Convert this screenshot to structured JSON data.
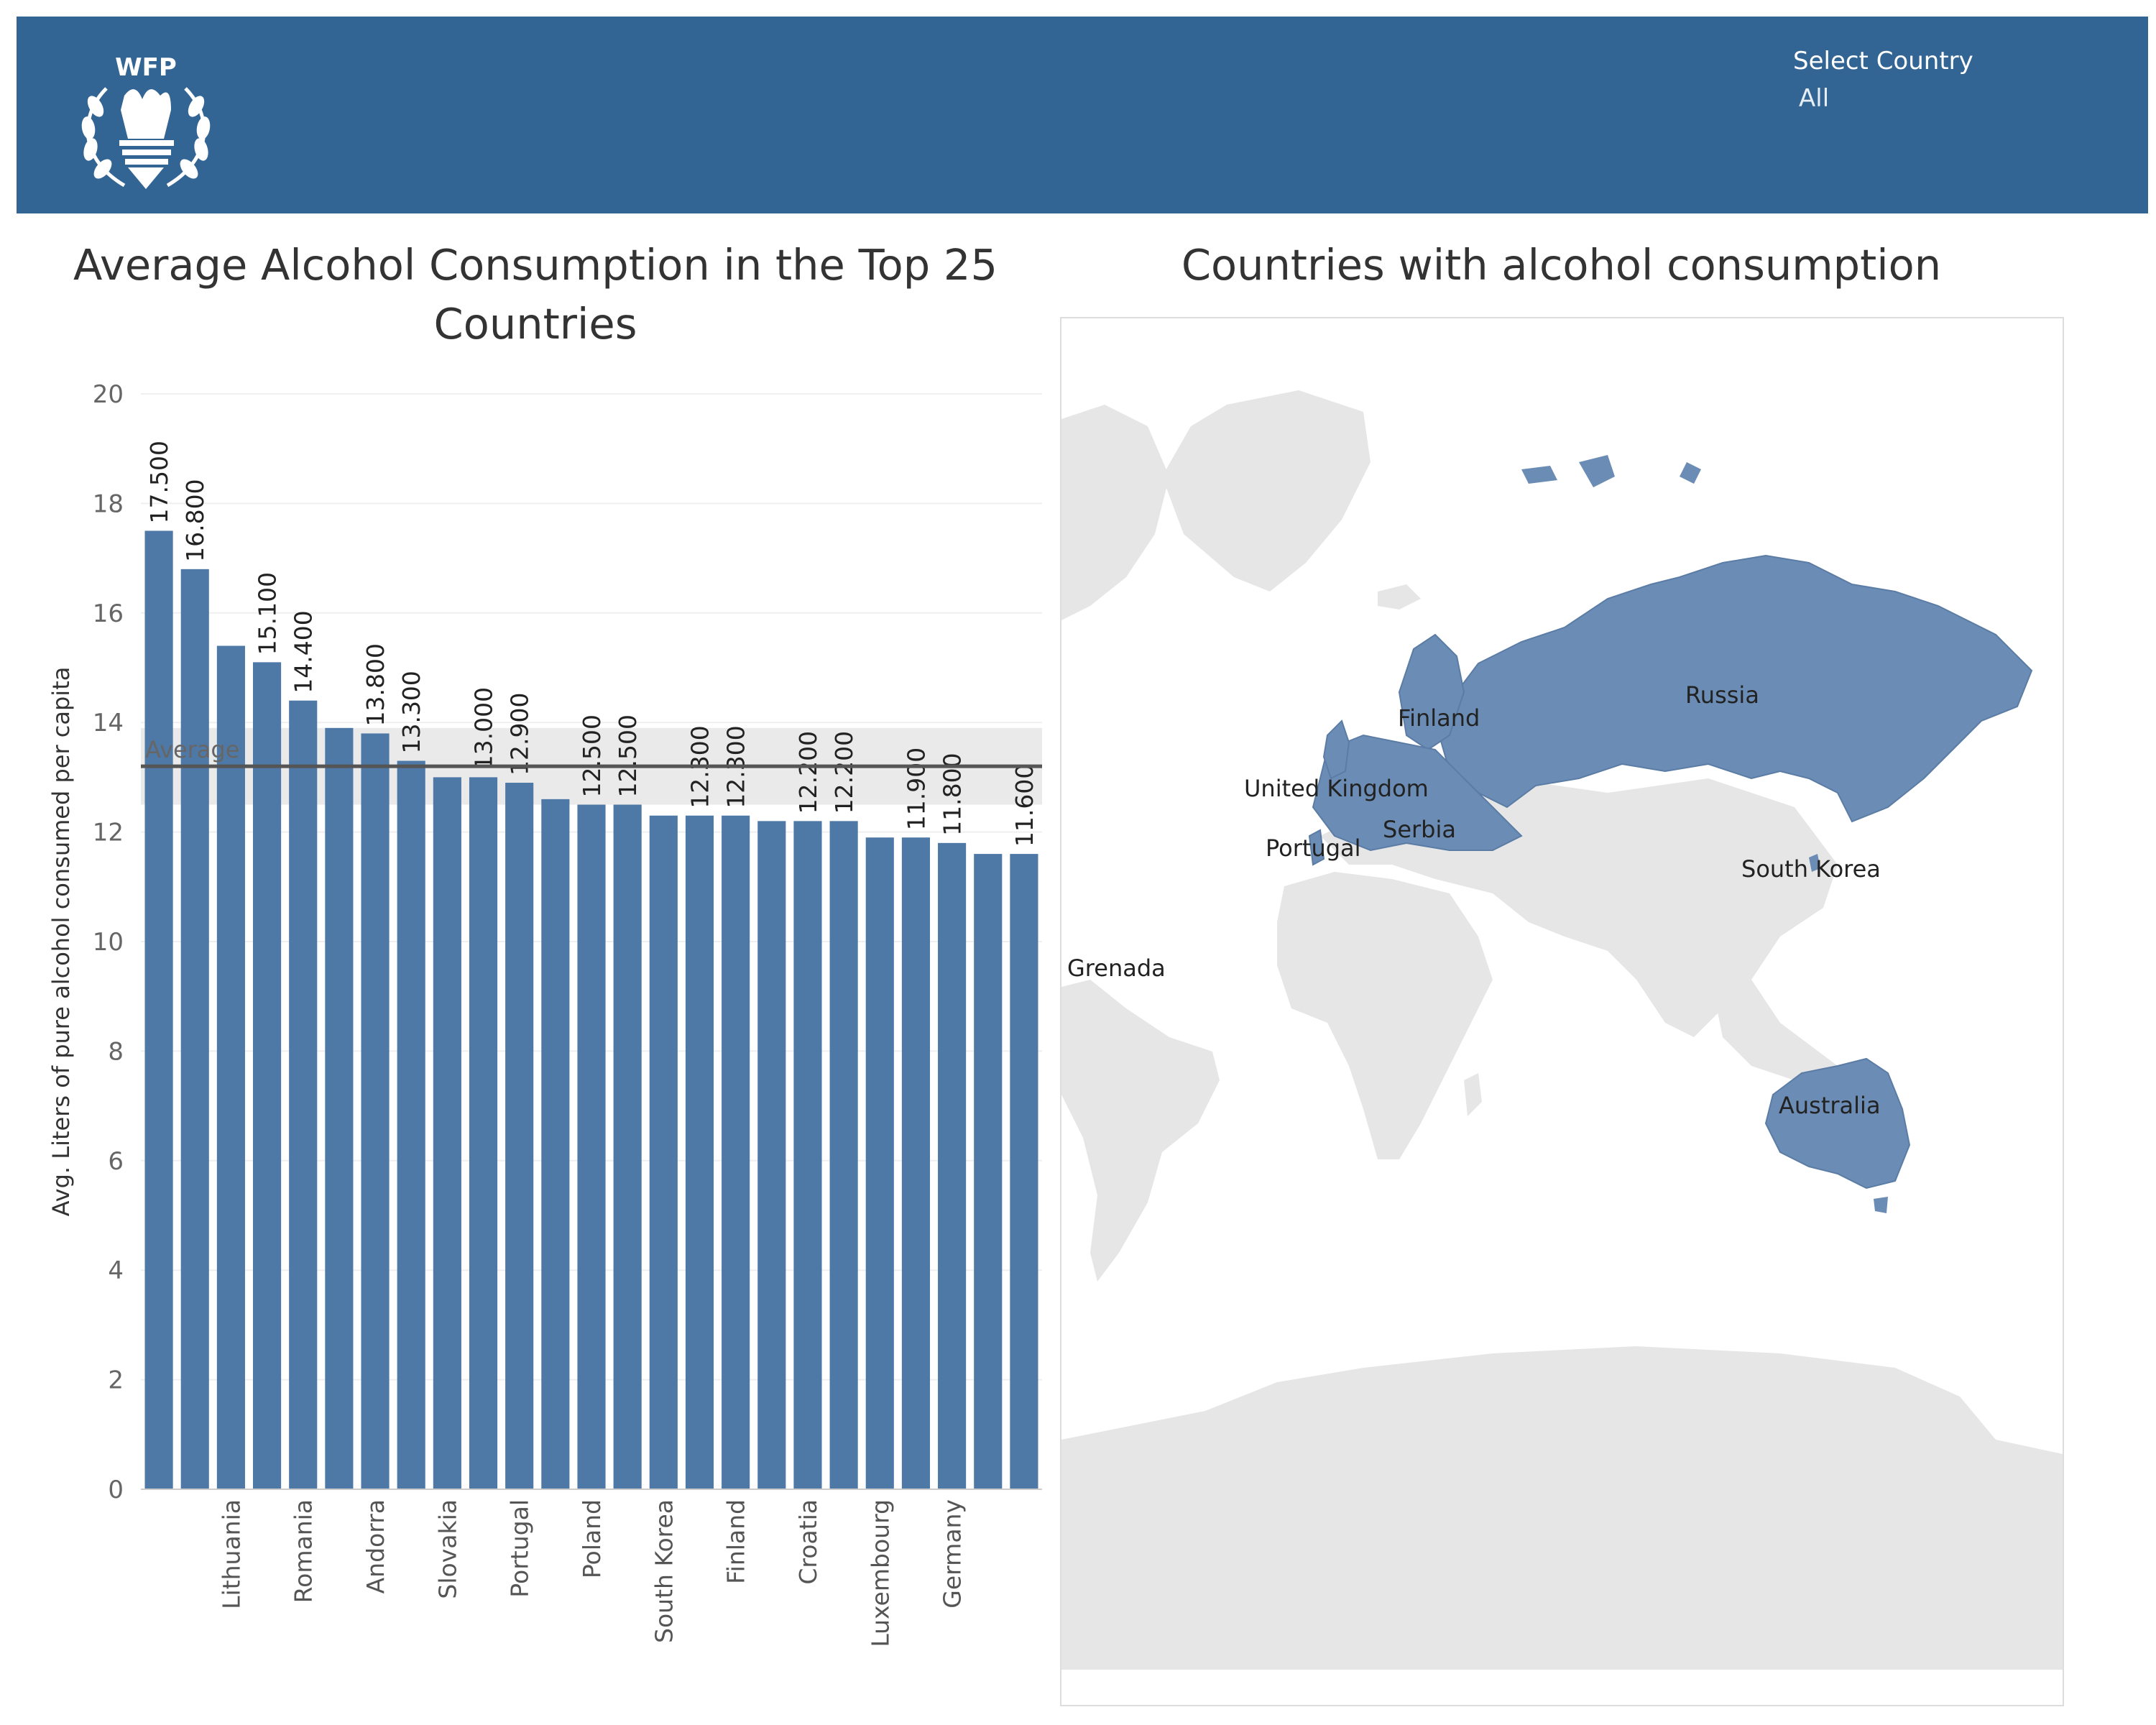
{
  "header": {
    "logo_text": "WFP",
    "filter_label": "Select Country",
    "filter_value": "All"
  },
  "colors": {
    "header_bg": "#336594",
    "bar": "#4e79a7",
    "land": "#e6e6e6",
    "highlight": "#6b8db5"
  },
  "chart_data": {
    "type": "bar",
    "title": "Average Alcohol Consumption in the Top 25 Countries",
    "ylabel": "Avg. Liters of pure alcohol consumed per capita",
    "ylim": [
      0,
      20
    ],
    "yticks": [
      0,
      2,
      4,
      6,
      8,
      10,
      12,
      14,
      16,
      18,
      20
    ],
    "reference_line": {
      "label": "Average",
      "value": 13.2,
      "band": [
        12.5,
        13.9
      ]
    },
    "values": [
      17.5,
      16.8,
      15.4,
      15.1,
      14.4,
      13.9,
      13.8,
      13.3,
      13.0,
      13.0,
      12.9,
      12.6,
      12.5,
      12.5,
      12.3,
      12.3,
      12.3,
      12.2,
      12.2,
      12.2,
      11.9,
      11.9,
      11.8,
      11.6,
      11.6
    ],
    "data_labels": [
      "17.500",
      "16.800",
      "",
      "15.100",
      "14.400",
      "",
      "13.800",
      "13.300",
      "",
      "13.000",
      "12.900",
      "",
      "12.500",
      "12.500",
      "",
      "12.300",
      "12.300",
      "",
      "12.200",
      "12.200",
      "",
      "11.900",
      "11.800",
      "",
      "11.600"
    ],
    "categories": [
      "",
      "",
      "Lithuania",
      "",
      "Romania",
      "",
      "Andorra",
      "",
      "Slovakia",
      "",
      "Portugal",
      "",
      "Poland",
      "",
      "South Korea",
      "",
      "Finland",
      "",
      "Croatia",
      "",
      "Luxembourg",
      "",
      "Germany",
      "",
      ""
    ]
  },
  "map": {
    "title": "Countries with alcohol consumption",
    "labels": [
      "Russia",
      "Finland",
      "United Kingdom",
      "Serbia",
      "Portugal",
      "South Korea",
      "Grenada",
      "Australia"
    ]
  }
}
